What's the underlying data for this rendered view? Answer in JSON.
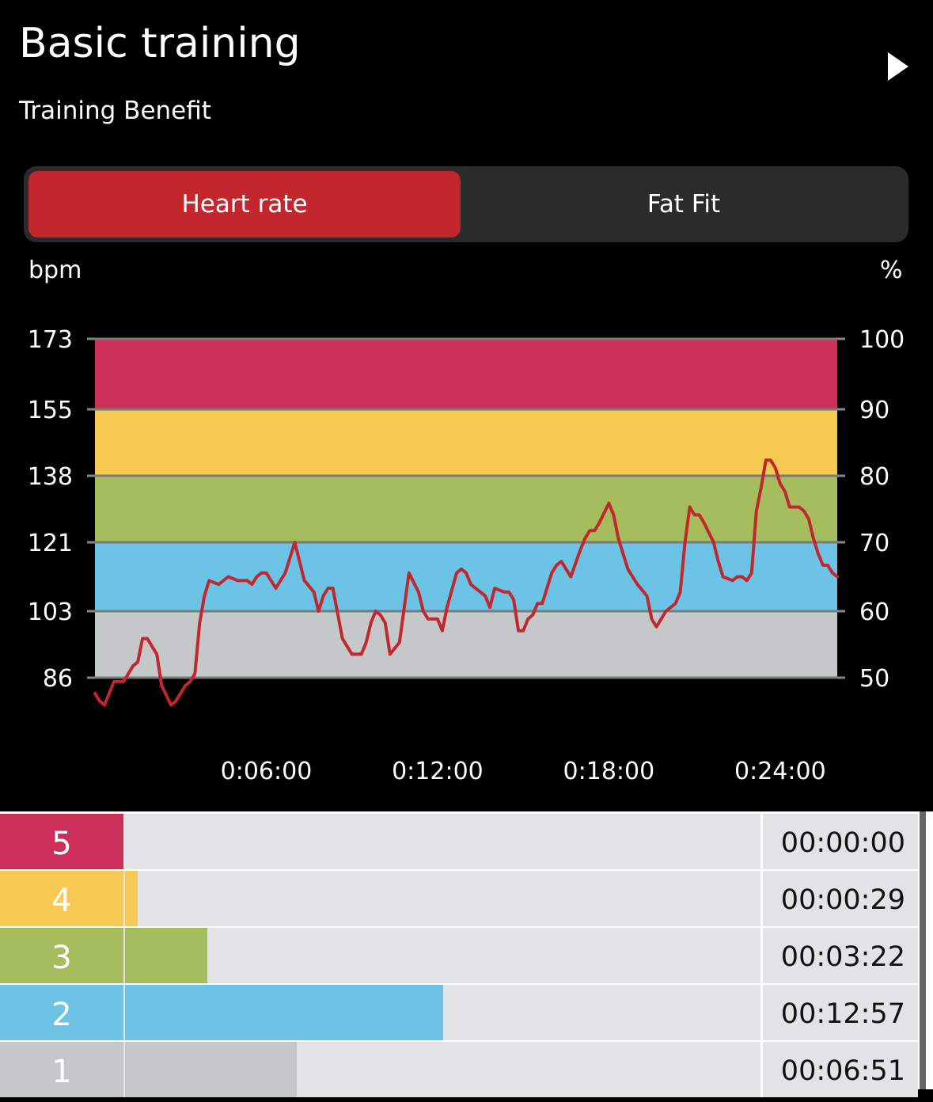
{
  "header": {
    "title": "Basic training",
    "play_icon": "play-icon",
    "subtitle": "Training Benefit"
  },
  "tabs": [
    {
      "label": "Heart rate",
      "active": true
    },
    {
      "label": "Fat Fit",
      "active": false
    }
  ],
  "colors": {
    "zone5": "#cc2f5a",
    "zone4": "#f6c953",
    "zone3": "#a5bd5d",
    "zone2": "#6bc3e6",
    "zone1": "#c4c8c8",
    "line": "#c1272d",
    "accent": "#c1272d"
  },
  "chart_data": {
    "type": "line",
    "xlabel": "",
    "ylabel": "bpm",
    "y2label": "%",
    "y_ticks": [
      173,
      155,
      138,
      121,
      103,
      86
    ],
    "y2_ticks": [
      100,
      90,
      80,
      70,
      60,
      50
    ],
    "x_ticks": [
      "0:06:00",
      "0:12:00",
      "0:18:00",
      "0:24:00"
    ],
    "x_tick_seconds": [
      360,
      720,
      1080,
      1440
    ],
    "xlim_seconds": [
      0,
      1560
    ],
    "ylim": [
      86,
      173
    ],
    "zones": [
      {
        "zone": 5,
        "from": 155,
        "to": 173
      },
      {
        "zone": 4,
        "from": 138,
        "to": 155
      },
      {
        "zone": 3,
        "from": 121,
        "to": 138
      },
      {
        "zone": 2,
        "from": 103,
        "to": 121
      },
      {
        "zone": 1,
        "from": 86,
        "to": 103
      }
    ],
    "series": [
      {
        "x": [
          0,
          10,
          20,
          40,
          60,
          80,
          90,
          100,
          110,
          130,
          140,
          160,
          170,
          180,
          190,
          200,
          210,
          220,
          230,
          240,
          260,
          280,
          300,
          320,
          330,
          340,
          350,
          360,
          380,
          400,
          420,
          440,
          460,
          470,
          480,
          490,
          500,
          520,
          540,
          560,
          570,
          580,
          590,
          600,
          610,
          620,
          640,
          660,
          680,
          690,
          700,
          720,
          730,
          740,
          760,
          770,
          780,
          790,
          800,
          820,
          830,
          840,
          860,
          870,
          880,
          890,
          900,
          910,
          920,
          930,
          940,
          960,
          970,
          980,
          990,
          1000,
          1020,
          1030,
          1040,
          1050,
          1060,
          1080,
          1090,
          1100,
          1120,
          1130,
          1140,
          1160,
          1170,
          1180,
          1190,
          1200,
          1220,
          1230,
          1240,
          1250,
          1260,
          1270,
          1280,
          1300,
          1310,
          1320,
          1340,
          1350,
          1360,
          1370,
          1380,
          1390,
          1400,
          1410,
          1420,
          1430,
          1440,
          1450,
          1460,
          1480,
          1490,
          1500,
          1510,
          1520,
          1530,
          1540,
          1550,
          1560
        ],
        "y": [
          82,
          80,
          79,
          85,
          85,
          89,
          90,
          96,
          96,
          92,
          84,
          79,
          80,
          82,
          84,
          85,
          87,
          100,
          107,
          111,
          110,
          112,
          111,
          111,
          110,
          112,
          113,
          113,
          109,
          113,
          121,
          111,
          108,
          103,
          107,
          109,
          109,
          96,
          92,
          92,
          95,
          100,
          103,
          102,
          100,
          92,
          95,
          113,
          108,
          103,
          101,
          101,
          98,
          104,
          113,
          114,
          113,
          110,
          109,
          107,
          104,
          109,
          108,
          108,
          106,
          98,
          98,
          101,
          102,
          105,
          105,
          113,
          115,
          116,
          114,
          112,
          119,
          122,
          124,
          124,
          126,
          131,
          128,
          122,
          114,
          112,
          110,
          107,
          101,
          99,
          101,
          103,
          105,
          108,
          121,
          130,
          128,
          128,
          126,
          121,
          116,
          112,
          111,
          112,
          112,
          111,
          113,
          129,
          135,
          142,
          142,
          140,
          136,
          134,
          130,
          130,
          129,
          127,
          122,
          118,
          115,
          115,
          113,
          112
        ]
      }
    ]
  },
  "zone_table": [
    {
      "zone": "5",
      "time": "00:00:00",
      "fraction": 0.0
    },
    {
      "zone": "4",
      "time": "00:00:29",
      "fraction": 0.02
    },
    {
      "zone": "3",
      "time": "00:03:22",
      "fraction": 0.13
    },
    {
      "zone": "2",
      "time": "00:12:57",
      "fraction": 0.5
    },
    {
      "zone": "1",
      "time": "00:06:51",
      "fraction": 0.27
    }
  ]
}
